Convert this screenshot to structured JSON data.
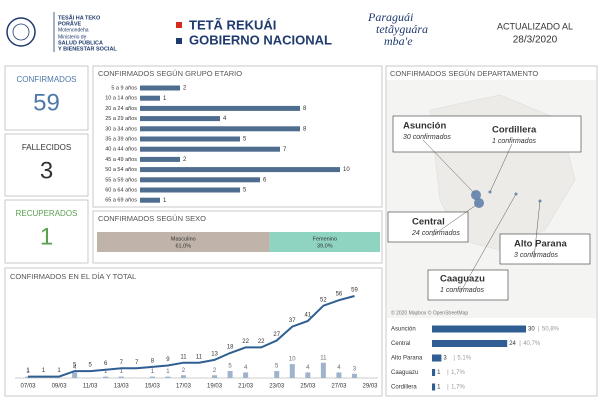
{
  "header": {
    "ministry_lines": [
      "TESÃI HA TEKO",
      "PORÃVE",
      "Motenondeha",
      "Ministerio de",
      "SALUD PÚBLICA",
      "Y BIENESTAR SOCIAL"
    ],
    "gov_line1": "TETÃ REKUÁI",
    "gov_line2": "GOBIERNO NACIONAL",
    "slogan_lines": [
      "Paraguái",
      "tetãyguára",
      "mba'e"
    ],
    "updated_label": "ACTUALIZADO AL",
    "updated_date": "28/3/2020"
  },
  "kpis": [
    {
      "label": "CONFIRMADOS",
      "value": 59,
      "color": "#4e79a7"
    },
    {
      "label": "FALLECIDOS",
      "value": 3,
      "color": "#333333"
    },
    {
      "label": "RECUPERADOS",
      "value": 1,
      "color": "#59a14f"
    }
  ],
  "chart_data": [
    {
      "type": "hbar",
      "title": "CONFIRMADOS SEGÚN GRUPO ETARIO",
      "color": "#4e6d8f",
      "categories": [
        "5 a 9 años",
        "10 a 14 años",
        "20 a 24 años",
        "25 a 29 años",
        "30 a 34 años",
        "35 a 39 años",
        "40 a 44 años",
        "45 a 49 años",
        "50 a 54 años",
        "55 a 59 años",
        "60 a 64 años",
        "65 a 69 años"
      ],
      "values": [
        2,
        1,
        8,
        4,
        8,
        5,
        7,
        2,
        10,
        6,
        5,
        1
      ]
    },
    {
      "type": "stacked100",
      "title": "CONFIRMADOS SEGÚN SEXO",
      "series": [
        {
          "name": "Masculino",
          "color": "#bfb3aa",
          "values": [
            61.0
          ],
          "value_labels": [
            "61,0%"
          ]
        },
        {
          "name": "Femenino",
          "color": "#8fd4c1",
          "values": [
            39.0
          ],
          "value_labels": [
            "39,0%"
          ]
        }
      ]
    },
    {
      "type": "combo",
      "title": "CONFIRMADOS EN EL DÍA Y TOTAL",
      "categories": [
        "07/03",
        null,
        "09/03",
        null,
        "11/03",
        null,
        "13/03",
        null,
        "15/03",
        null,
        "17/03",
        null,
        "19/03",
        null,
        "21/03",
        null,
        "23/03",
        null,
        "25/03",
        null,
        "27/03",
        null,
        "29/03"
      ],
      "series": [
        {
          "mark": "bar",
          "color": "#9fb3cc",
          "values": [
            1,
            0,
            0,
            4,
            0,
            1,
            1,
            0,
            1,
            1,
            2,
            0,
            2,
            5,
            4,
            0,
            5,
            10,
            4,
            11,
            4,
            3,
            null
          ]
        },
        {
          "mark": "line",
          "color": "#2f5f92",
          "values": [
            1,
            1,
            1,
            5,
            5,
            6,
            7,
            7,
            8,
            9,
            11,
            11,
            13,
            18,
            22,
            22,
            27,
            37,
            41,
            52,
            56,
            59,
            null
          ]
        }
      ]
    },
    {
      "type": "hbar",
      "color": "#2f5f92",
      "categories": [
        "Asunción",
        "Central",
        "Alto Parana",
        "Caaguazu",
        "Cordillera"
      ],
      "values": [
        30,
        24,
        3,
        1,
        1
      ],
      "separator": "|",
      "percent_labels": [
        "50,8%",
        "40,7%",
        "5,1%",
        "1,7%",
        "1,7%"
      ]
    }
  ],
  "map": {
    "title": "CONFIRMADOS SEGÚN DEPARTAMENTO",
    "callouts": [
      {
        "name": "Asunción",
        "label": "30 confirmados"
      },
      {
        "name": "Cordillera",
        "label": "1 confirmados"
      },
      {
        "name": "Central",
        "label": "24 confirmados"
      },
      {
        "name": "Alto Parana",
        "label": "3 confirmados"
      },
      {
        "name": "Caaguazu",
        "label": "1 confirmados"
      }
    ],
    "attribution": "© 2020 Mapbox © OpenStreetMap"
  }
}
